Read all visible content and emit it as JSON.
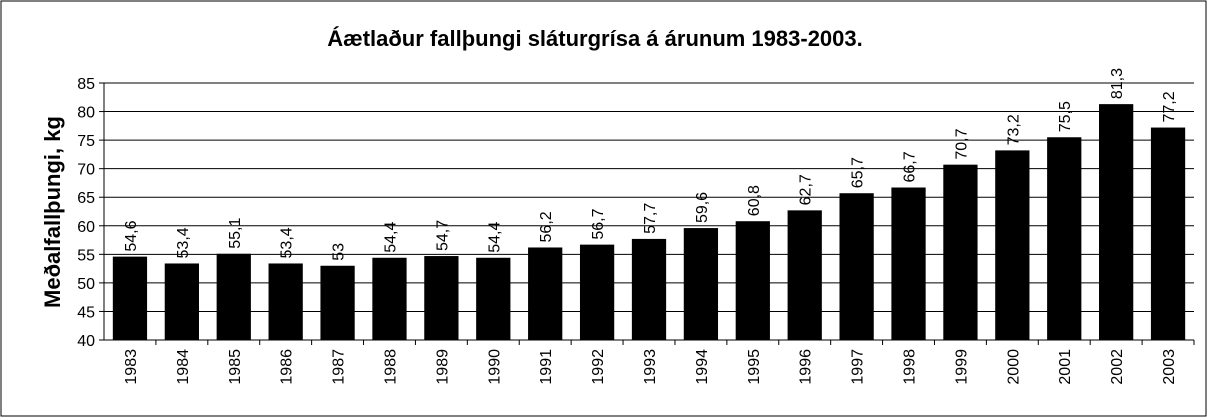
{
  "chart_data": {
    "type": "bar",
    "title": "Áætlaður fallþungi sláturgrísa á árunum 1983-2003.",
    "y_label": "Meðalfallþungi, kg",
    "categories": [
      "1983",
      "1984",
      "1985",
      "1986",
      "1987",
      "1988",
      "1989",
      "1990",
      "1991",
      "1992",
      "1993",
      "1994",
      "1995",
      "1996",
      "1997",
      "1998",
      "1999",
      "2000",
      "2001",
      "2002",
      "2003"
    ],
    "values": [
      54.6,
      53.4,
      55.1,
      53.4,
      53,
      54.4,
      54.7,
      54.4,
      56.2,
      56.7,
      57.7,
      59.6,
      60.8,
      62.7,
      65.7,
      66.7,
      70.7,
      73.2,
      75.5,
      81.3,
      77.2
    ],
    "value_labels": [
      "54,6",
      "53,4",
      "55,1",
      "53,4",
      "53",
      "54,4",
      "54,7",
      "54,4",
      "56,2",
      "56,7",
      "57,7",
      "59,6",
      "60,8",
      "62,7",
      "65,7",
      "66,7",
      "70,7",
      "73,2",
      "75,5",
      "81,3",
      "77,2"
    ],
    "color": "#000000",
    "ylim": [
      40,
      85
    ],
    "yticks": [
      40,
      45,
      50,
      55,
      60,
      65,
      70,
      75,
      80,
      85
    ],
    "grid": true
  }
}
